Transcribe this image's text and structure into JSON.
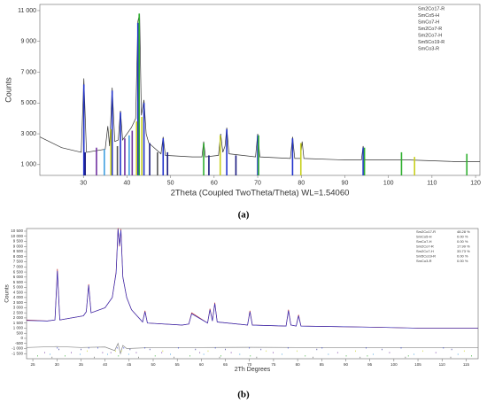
{
  "captions": [
    "(a)",
    "(b)"
  ],
  "chart_data": [
    {
      "type": "line",
      "x_label": "2Theta (Coupled TwoTheta/Theta) WL=1.54060",
      "y_label": "Counts",
      "xlim": [
        20,
        121
      ],
      "ylim": [
        300,
        11400
      ],
      "xticks": [
        30,
        40,
        50,
        60,
        70,
        80,
        90,
        100,
        110,
        120
      ],
      "yticks": [
        {
          "value": 1000,
          "label": "1 000"
        },
        {
          "value": 3000,
          "label": "3 000"
        },
        {
          "value": 5000,
          "label": "5 000"
        },
        {
          "value": 7000,
          "label": "7 000"
        },
        {
          "value": 9000,
          "label": "9 000"
        },
        {
          "value": 11000,
          "label": "11 000"
        }
      ],
      "series": [
        {
          "style": "line",
          "color": "#333333",
          "x": [
            20,
            25,
            29.5,
            30.1,
            30.7,
            35,
            35.6,
            36.0,
            36.6,
            37.2,
            38,
            38.5,
            39,
            40,
            41,
            42,
            42.5,
            42.9,
            43.3,
            43.9,
            44.4,
            45,
            47.8,
            48.3,
            48.8,
            55,
            57.2,
            57.6,
            58,
            61,
            61.5,
            62,
            62.5,
            62.9,
            63.4,
            69.5,
            70,
            70.5,
            77.5,
            78,
            78.5,
            79.8,
            80.2,
            80.6,
            90,
            93.8,
            94.2,
            94.6,
            105,
            115,
            121
          ],
          "values": [
            2800,
            2100,
            1800,
            6600,
            1800,
            2000,
            3500,
            2200,
            6000,
            2500,
            2600,
            4500,
            2600,
            3000,
            3400,
            4000,
            10300,
            10800,
            4200,
            5200,
            3000,
            2400,
            1700,
            2800,
            1600,
            1500,
            1500,
            2500,
            1500,
            1600,
            3000,
            1800,
            2200,
            3400,
            1700,
            1500,
            3000,
            1500,
            1400,
            2800,
            1400,
            1400,
            2500,
            1400,
            1300,
            1300,
            2200,
            1300,
            1300,
            1200,
            1200
          ]
        },
        {
          "style": "sticks",
          "name": "Sm2Co17-R",
          "color": "#2233cc",
          "x": [
            30.1,
            36.6,
            38.5,
            42.5,
            43.9,
            48.3,
            62.9,
            70,
            78,
            94.2
          ],
          "values": [
            6200,
            5800,
            4400,
            10200,
            5000,
            2700,
            3300,
            2900,
            2700,
            2100
          ]
        },
        {
          "style": "sticks",
          "name": "SmCo5-H",
          "color": "#1a1a80",
          "x": [
            30.4,
            45.2,
            49.3,
            58.8,
            65.0
          ],
          "values": [
            1800,
            2400,
            1800,
            1600,
            1600
          ]
        },
        {
          "style": "sticks",
          "name": "SmCo7-H",
          "color": "#c8d020",
          "x": [
            36.3,
            42.2,
            43.4,
            61.4,
            79.9,
            106
          ],
          "values": [
            3300,
            3800,
            4100,
            2900,
            2400,
            1500
          ]
        },
        {
          "style": "sticks",
          "name": "Sm2Co7-R",
          "color": "#7030a0",
          "x": [
            33.0,
            39.5,
            41.2
          ],
          "values": [
            2100,
            2700,
            3200
          ]
        },
        {
          "style": "sticks",
          "name": "Sm2Co7-H",
          "color": "#40a0e0",
          "x": [
            34.8,
            40.5
          ],
          "values": [
            2000,
            2900
          ]
        },
        {
          "style": "sticks",
          "name": "Sm5Co19-R",
          "color": "#30b030",
          "x": [
            42.8,
            57.6,
            70.2,
            94.5,
            103,
            118
          ],
          "values": [
            10800,
            2400,
            2900,
            2100,
            1800,
            1700
          ]
        },
        {
          "style": "sticks",
          "name": "SmCo3-R",
          "color": "#555555",
          "x": [
            37.8,
            47.0
          ],
          "values": [
            2200,
            1800
          ]
        }
      ]
    },
    {
      "type": "line",
      "x_label": "2Th Degrees",
      "y_label": "Counts",
      "xlim": [
        23.7,
        117.5
      ],
      "ylim": [
        -2000,
        10760
      ],
      "xticks": [
        25,
        30,
        35,
        40,
        45,
        50,
        55,
        60,
        65,
        70,
        75,
        80,
        85,
        90,
        95,
        100,
        105,
        110,
        115
      ],
      "yticks": [
        {
          "value": 10500,
          "label": "10 500"
        },
        {
          "value": 10000,
          "label": "10 000"
        },
        {
          "value": 9500,
          "label": "9 500"
        },
        {
          "value": 9000,
          "label": "9 000"
        },
        {
          "value": 8500,
          "label": "8 500"
        },
        {
          "value": 8000,
          "label": "8 000"
        },
        {
          "value": 7500,
          "label": "7 500"
        },
        {
          "value": 7000,
          "label": "7 000"
        },
        {
          "value": 6500,
          "label": "6 500"
        },
        {
          "value": 6000,
          "label": "6 000"
        },
        {
          "value": 5500,
          "label": "5 500"
        },
        {
          "value": 5000,
          "label": "5 000"
        },
        {
          "value": 4500,
          "label": "4 500"
        },
        {
          "value": 4000,
          "label": "4 000"
        },
        {
          "value": 3500,
          "label": "3 500"
        },
        {
          "value": 3000,
          "label": "3 000"
        },
        {
          "value": 2500,
          "label": "2 500"
        },
        {
          "value": 2000,
          "label": "2 000"
        },
        {
          "value": 1500,
          "label": "1 500"
        },
        {
          "value": 1000,
          "label": "1 000"
        },
        500,
        0,
        -500,
        {
          "value": -1000,
          "label": "-1 000"
        },
        {
          "value": -1500,
          "label": "-1 500"
        }
      ],
      "series": [
        {
          "style": "line",
          "color": "#c03030",
          "x": [
            23.7,
            28,
            29.6,
            30.1,
            30.6,
            35.5,
            36.1,
            36.6,
            37.1,
            40,
            41.5,
            42.3,
            42.7,
            43.0,
            43.3,
            43.7,
            44.5,
            45.5,
            47.8,
            48.3,
            48.8,
            56,
            57.4,
            58,
            61.3,
            61.8,
            62.3,
            62.8,
            63.3,
            69.6,
            70.1,
            70.6,
            77.6,
            78.1,
            78.6,
            79.7,
            80.2,
            80.7,
            95,
            105,
            117.5
          ],
          "values": [
            1800,
            1700,
            1800,
            6800,
            1800,
            2200,
            2600,
            5300,
            2500,
            3000,
            4000,
            6500,
            10800,
            9000,
            10700,
            6000,
            4000,
            2800,
            1600,
            2700,
            1500,
            1300,
            1400,
            2500,
            1500,
            2900,
            1700,
            3500,
            1600,
            1300,
            2700,
            1300,
            1200,
            2800,
            1300,
            1200,
            2300,
            1200,
            1100,
            1000,
            1000
          ]
        },
        {
          "style": "line",
          "color": "#3030c0",
          "x": [
            23.7,
            28,
            29.6,
            30.1,
            30.6,
            35.5,
            36.1,
            36.6,
            37.1,
            40,
            41.5,
            42.3,
            42.7,
            43.0,
            43.3,
            43.7,
            44.5,
            45.5,
            47.8,
            48.3,
            48.8,
            56,
            57.4,
            58,
            61.3,
            61.8,
            62.3,
            62.8,
            63.3,
            69.6,
            70.1,
            70.6,
            77.6,
            78.1,
            78.6,
            79.7,
            80.2,
            80.7,
            95,
            105,
            117.5
          ],
          "values": [
            1750,
            1700,
            1800,
            6600,
            1800,
            2200,
            2600,
            5200,
            2500,
            3000,
            4000,
            6400,
            10700,
            9100,
            10600,
            6000,
            4000,
            2800,
            1600,
            2600,
            1500,
            1300,
            1400,
            2400,
            1500,
            2800,
            1700,
            3400,
            1600,
            1300,
            2600,
            1300,
            1200,
            2700,
            1300,
            1200,
            2200,
            1200,
            1100,
            1000,
            1000
          ]
        },
        {
          "style": "line",
          "color": "#888888",
          "x": [
            23.7,
            30,
            35,
            40,
            42,
            42.7,
            43.2,
            43.7,
            44.5,
            50,
            60,
            70,
            80,
            90,
            100,
            117.5
          ],
          "values": [
            -900,
            -800,
            -900,
            -850,
            -1200,
            -500,
            -1500,
            -700,
            -1000,
            -900,
            -900,
            -880,
            -900,
            -900,
            -900,
            -900
          ]
        },
        {
          "style": "ticks",
          "name": "Sm2Co17-R",
          "percent_label": "48.28 %",
          "color": "#2233cc",
          "x": [
            30.1,
            36.6,
            38.5,
            42.5,
            43.9,
            48.3,
            55.2,
            62.9,
            70,
            78,
            85.1,
            94.2,
            101.5,
            110.3
          ]
        },
        {
          "style": "ticks",
          "name": "SmCo5-H",
          "percent_label": "0.00 %",
          "color": "#1a1a80",
          "x": [
            30.4,
            35.0,
            45.2,
            49.3,
            58.8,
            65.0,
            72.4,
            84.0,
            97.5,
            112.0
          ]
        },
        {
          "style": "ticks",
          "name": "SmCo7-H",
          "percent_label": "0.00 %",
          "color": "#c8d020",
          "x": [
            36.3,
            42.2,
            43.4,
            52.0,
            61.4,
            73.5,
            79.9,
            92.0,
            106,
            114.6
          ]
        },
        {
          "style": "ticks",
          "name": "Sm2Co7-R",
          "percent_label": "17.99 %",
          "color": "#7030a0",
          "x": [
            27.5,
            33.0,
            39.5,
            41.2,
            46.5,
            51.8,
            59.7,
            66.2,
            74.9,
            88.3,
            99.1,
            108.7
          ]
        },
        {
          "style": "ticks",
          "name": "Sm2Co7-H",
          "percent_label": "33.73 %",
          "color": "#40a0e0",
          "x": [
            28.6,
            34.8,
            40.5,
            44.9,
            53.6,
            60.5,
            68.0,
            76.8,
            86.4,
            95.7,
            104.2,
            113.3
          ]
        },
        {
          "style": "ticks",
          "name": "Sm5Co19-R",
          "percent_label": "0.00 %",
          "color": "#30b030",
          "x": [
            26.0,
            31.7,
            42.8,
            50.4,
            57.6,
            64.1,
            70.2,
            81.6,
            90.1,
            94.5,
            103,
            116.1
          ]
        },
        {
          "style": "ticks",
          "name": "SmCo3-R",
          "percent_label": "0.00 %",
          "color": "#555555",
          "x": [
            29.0,
            37.8,
            47.0,
            54.3,
            63.8,
            71.5,
            83.2,
            93.0,
            102.4,
            111.8
          ]
        }
      ]
    }
  ]
}
